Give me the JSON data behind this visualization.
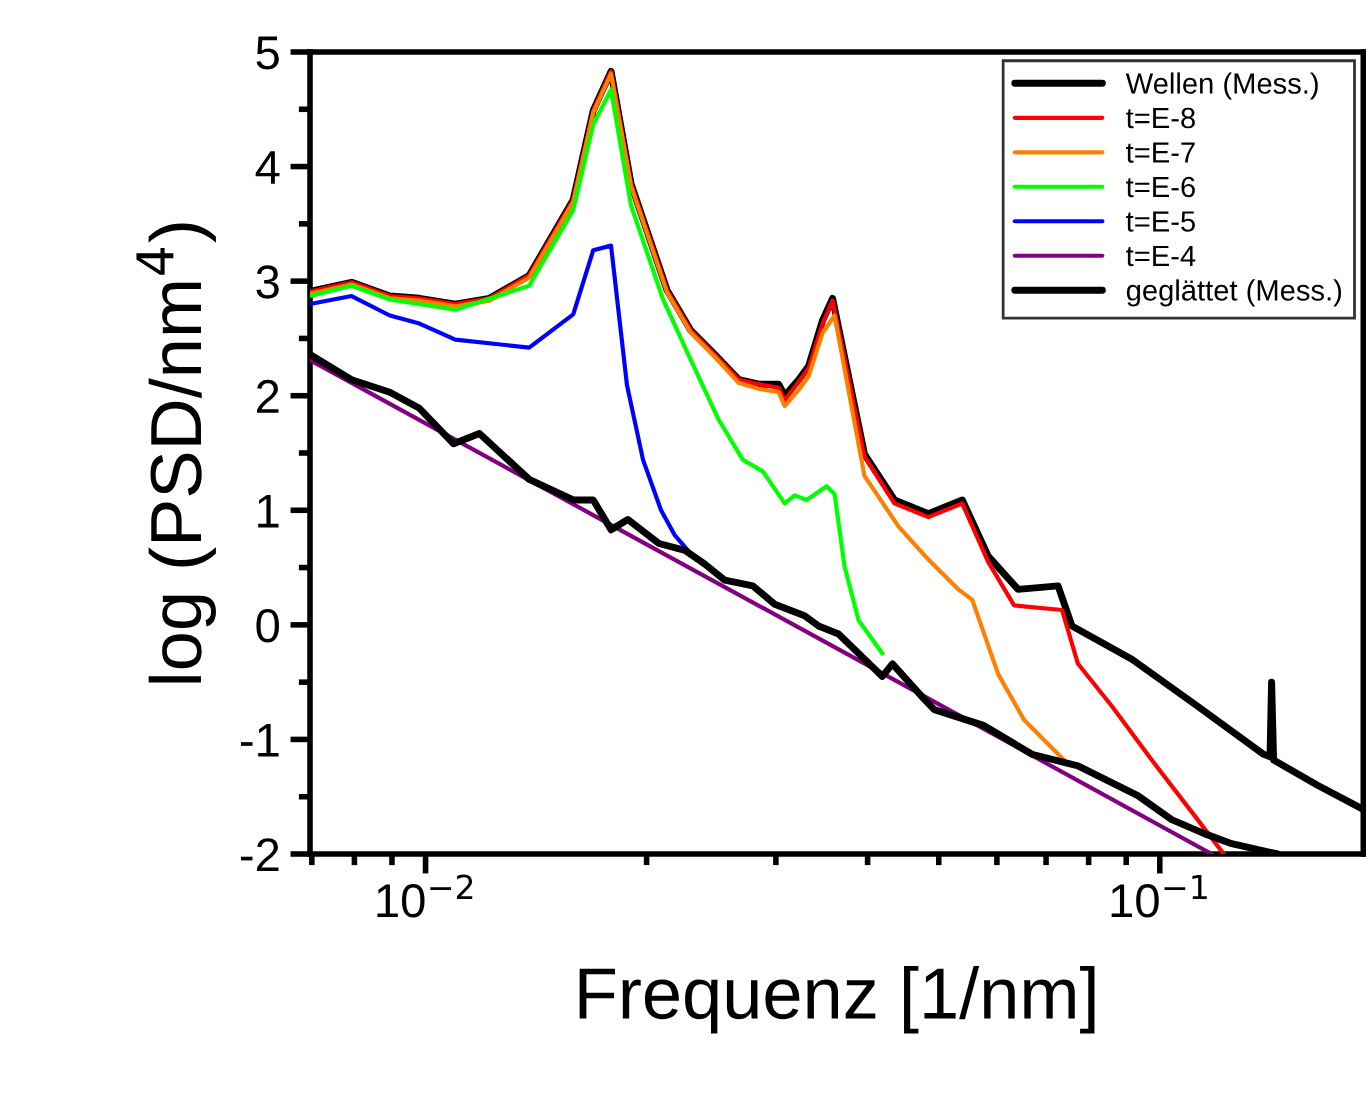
{
  "chart_data": {
    "type": "line",
    "xlabel": "Frequenz [1/nm]",
    "ylabel": "log (PSD/nm$^{4}$)",
    "log": "x",
    "grid": false,
    "legend": "top right",
    "marker": "none",
    "line_style": "solid",
    "xlim": [
      0.00696,
      0.1893
    ],
    "ylim": [
      -2,
      5
    ],
    "xticks": [
      {
        "value": 0.01,
        "label": "10$^{−2}$"
      },
      {
        "value": 0.1,
        "label": "10$^{−1}$"
      }
    ],
    "yticks": [
      -2,
      -1,
      0,
      1,
      2,
      3,
      4,
      5
    ],
    "series": [
      {
        "name": "Wellen (Mess.)",
        "color": "#000000",
        "x": [
          0.00696,
          0.00793,
          0.00894,
          0.00981,
          0.01098,
          0.01222,
          0.01384,
          0.01589,
          0.01692,
          0.01789,
          0.01905,
          0.02133,
          0.02298,
          0.02477,
          0.02671,
          0.02844,
          0.03027,
          0.03084,
          0.03222,
          0.03325,
          0.03474,
          0.03584,
          0.03961,
          0.04351,
          0.0484,
          0.05383,
          0.05838,
          0.06413,
          0.07268,
          0.07592,
          0.09162,
          0.1126,
          0.1385,
          0.1413,
          0.142,
          0.1429,
          0.164,
          0.1893
        ],
        "values": [
          2.91,
          2.99,
          2.87,
          2.85,
          2.8,
          2.85,
          3.05,
          3.71,
          4.49,
          4.83,
          3.85,
          2.92,
          2.57,
          2.36,
          2.14,
          2.1,
          2.1,
          2.0,
          2.14,
          2.26,
          2.66,
          2.85,
          1.49,
          1.09,
          0.97,
          1.09,
          0.6,
          0.31,
          0.34,
          -0.01,
          -0.3,
          -0.71,
          -1.13,
          -1.15,
          -0.5,
          -1.18,
          -1.4,
          -1.61
        ]
      },
      {
        "name": "t=E-8",
        "color": "#ff0000",
        "x": [
          0.00696,
          0.00793,
          0.00894,
          0.00981,
          0.01098,
          0.01222,
          0.01384,
          0.01589,
          0.01692,
          0.01789,
          0.01905,
          0.02133,
          0.02298,
          0.02477,
          0.02671,
          0.02844,
          0.03027,
          0.03084,
          0.03222,
          0.03325,
          0.03474,
          0.03584,
          0.03961,
          0.04351,
          0.0484,
          0.05383,
          0.05838,
          0.06333,
          0.07359,
          0.07737,
          0.08607,
          0.09752,
          0.1126,
          0.1222
        ],
        "values": [
          2.91,
          2.99,
          2.87,
          2.85,
          2.8,
          2.85,
          3.05,
          3.71,
          4.49,
          4.83,
          3.85,
          2.92,
          2.57,
          2.36,
          2.14,
          2.1,
          2.07,
          1.96,
          2.12,
          2.24,
          2.63,
          2.83,
          1.47,
          1.06,
          0.94,
          1.06,
          0.55,
          0.17,
          0.13,
          -0.34,
          -0.71,
          -1.18,
          -1.7,
          -2.0
        ]
      },
      {
        "name": "t=E-7",
        "color": "#ff8000",
        "x": [
          0.00696,
          0.00793,
          0.00894,
          0.00981,
          0.01098,
          0.01222,
          0.01384,
          0.01589,
          0.01692,
          0.01789,
          0.01905,
          0.02133,
          0.02298,
          0.02477,
          0.02671,
          0.02844,
          0.03027,
          0.03084,
          0.03222,
          0.03325,
          0.03474,
          0.03607,
          0.03961,
          0.04406,
          0.0484,
          0.05315,
          0.05553,
          0.06024,
          0.06535,
          0.07405
        ],
        "values": [
          2.89,
          2.97,
          2.85,
          2.83,
          2.78,
          2.83,
          3.03,
          3.69,
          4.47,
          4.81,
          3.83,
          2.9,
          2.55,
          2.34,
          2.11,
          2.06,
          2.03,
          1.91,
          2.05,
          2.17,
          2.55,
          2.7,
          1.3,
          0.86,
          0.57,
          0.31,
          0.22,
          -0.43,
          -0.83,
          -1.18
        ]
      },
      {
        "name": "t=E-6",
        "color": "#00ff00",
        "x": [
          0.00696,
          0.00793,
          0.00894,
          0.01098,
          0.01384,
          0.01589,
          0.01692,
          0.01789,
          0.01905,
          0.02106,
          0.02298,
          0.02508,
          0.02705,
          0.0288,
          0.03084,
          0.03182,
          0.03304,
          0.03518,
          0.03607,
          0.03721,
          0.03888,
          0.0419
        ],
        "values": [
          2.87,
          2.96,
          2.84,
          2.75,
          2.96,
          3.62,
          4.37,
          4.67,
          3.66,
          2.84,
          2.31,
          1.79,
          1.44,
          1.34,
          1.06,
          1.13,
          1.09,
          1.21,
          1.14,
          0.51,
          0.04,
          -0.25
        ]
      },
      {
        "name": "t=E-5",
        "color": "#0000ff",
        "x": [
          0.00696,
          0.00793,
          0.00894,
          0.00981,
          0.01098,
          0.01384,
          0.01589,
          0.01692,
          0.01789,
          0.01881,
          0.01978,
          0.02093,
          0.02186,
          0.02298
        ],
        "values": [
          2.8,
          2.87,
          2.7,
          2.63,
          2.49,
          2.42,
          2.71,
          3.27,
          3.31,
          2.09,
          1.44,
          1.0,
          0.78,
          0.62
        ]
      },
      {
        "name": "t=E-4",
        "color": "#800080",
        "x": [
          0.00696,
          0.01723,
          0.04406,
          0.1177
        ],
        "values": [
          2.31,
          0.93,
          -0.5,
          -2.0
        ]
      },
      {
        "name": "geglättet (Mess.)",
        "color": "#000000",
        "x": [
          0.00696,
          0.00793,
          0.00894,
          0.00981,
          0.01092,
          0.01184,
          0.01384,
          0.01589,
          0.01692,
          0.01789,
          0.01886,
          0.02079,
          0.02256,
          0.02401,
          0.02556,
          0.02791,
          0.02989,
          0.03283,
          0.0343,
          0.03652,
          0.0419,
          0.04324,
          0.0478,
          0.04931,
          0.05766,
          0.067,
          0.07737,
          0.09335,
          0.1038,
          0.1148,
          0.1253,
          0.1447
        ],
        "values": [
          2.36,
          2.14,
          2.03,
          1.89,
          1.58,
          1.67,
          1.27,
          1.09,
          1.09,
          0.83,
          0.92,
          0.71,
          0.65,
          0.53,
          0.39,
          0.34,
          0.18,
          0.08,
          -0.01,
          -0.08,
          -0.45,
          -0.34,
          -0.65,
          -0.74,
          -0.88,
          -1.13,
          -1.23,
          -1.49,
          -1.7,
          -1.82,
          -1.91,
          -2.0
        ]
      }
    ]
  }
}
